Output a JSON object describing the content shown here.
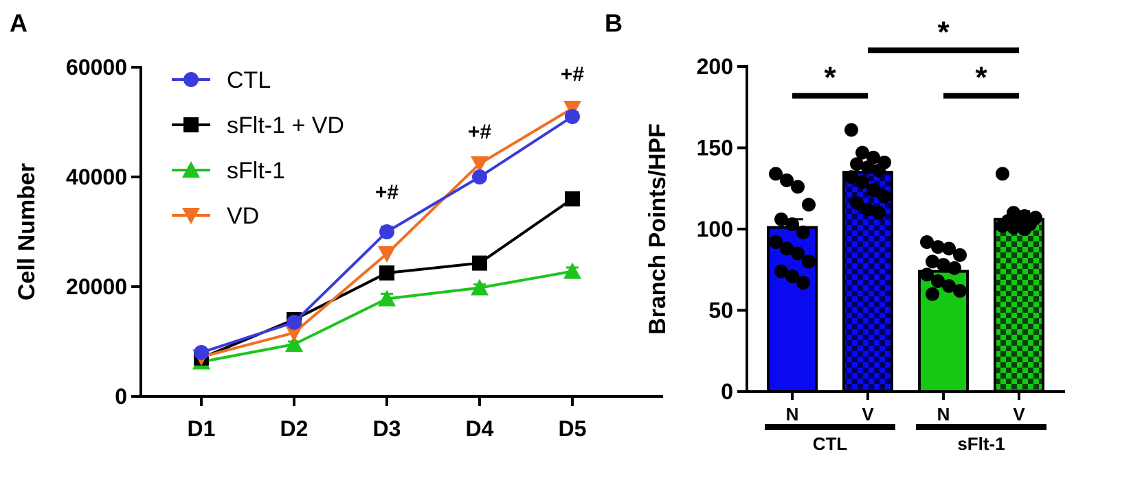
{
  "panel_a": {
    "label": "A",
    "chart_data": {
      "type": "line",
      "categories": [
        "D1",
        "D2",
        "D3",
        "D4",
        "D5"
      ],
      "ylabel": "Cell Number",
      "xlabel": "",
      "ylim": [
        0,
        60000
      ],
      "yticks": [
        "0",
        "20000",
        "40000",
        "60000"
      ],
      "legend_position": "top-left",
      "series": [
        {
          "name": "CTL",
          "color": "#3b3bdc",
          "marker": "circle",
          "values": [
            8000,
            13500,
            30000,
            40000,
            51000
          ],
          "errors": [
            400,
            600,
            900,
            700,
            800
          ]
        },
        {
          "name": "sFlt-1 + VD",
          "color": "#000000",
          "marker": "square",
          "values": [
            7000,
            14000,
            22500,
            24300,
            36000
          ],
          "errors": [
            400,
            500,
            700,
            600,
            800
          ]
        },
        {
          "name": "sFlt-1",
          "color": "#1ec41e",
          "marker": "triangle-up",
          "values": [
            6300,
            9500,
            17800,
            19800,
            22800
          ],
          "errors": [
            300,
            500,
            900,
            600,
            700
          ]
        },
        {
          "name": "VD",
          "color": "#f07024",
          "marker": "triangle-down",
          "values": [
            7200,
            11600,
            26000,
            42400,
            52500
          ],
          "errors": [
            400,
            500,
            900,
            700,
            800
          ]
        }
      ],
      "annotations": [
        {
          "category": "D3",
          "text": "+#",
          "y": 36000
        },
        {
          "category": "D4",
          "text": "+#",
          "y": 47000
        },
        {
          "category": "D5",
          "text": "+#",
          "y": 57500
        }
      ]
    }
  },
  "panel_b": {
    "label": "B",
    "chart_data": {
      "type": "bar",
      "categories": [
        "N",
        "V",
        "N",
        "V"
      ],
      "groups": [
        {
          "label": "CTL",
          "categories": [
            0,
            1
          ]
        },
        {
          "label": "sFlt-1",
          "categories": [
            2,
            3
          ]
        }
      ],
      "values": [
        101,
        135,
        74,
        106
      ],
      "errors": [
        5,
        4,
        4,
        5
      ],
      "colors": [
        "#0a0af0",
        "#0a0af0",
        "#14c814",
        "#14c814"
      ],
      "patterns": [
        "solid",
        "checker",
        "solid",
        "checker"
      ],
      "ylabel": "Branch Points/HPF",
      "xlabel": "",
      "ylim": [
        0,
        200
      ],
      "yticks": [
        "0",
        "50",
        "100",
        "150",
        "200"
      ],
      "points": [
        [
          134,
          130,
          126,
          115,
          106,
          103,
          98,
          92,
          88,
          85,
          80,
          74,
          71,
          67
        ],
        [
          161,
          147,
          144,
          141,
          140,
          138,
          136,
          132,
          129,
          124,
          120,
          116,
          112,
          110
        ],
        [
          92,
          89,
          88,
          84,
          80,
          78,
          76,
          72,
          68,
          65,
          62,
          60
        ],
        [
          134,
          110,
          108,
          107,
          105,
          104,
          103,
          102,
          101,
          100
        ]
      ],
      "significance": [
        {
          "from": 0,
          "to": 1,
          "label": "*",
          "level": 182
        },
        {
          "from": 2,
          "to": 3,
          "label": "*",
          "level": 182
        },
        {
          "from": 1,
          "to": 3,
          "label": "*",
          "level": 210
        }
      ]
    }
  }
}
